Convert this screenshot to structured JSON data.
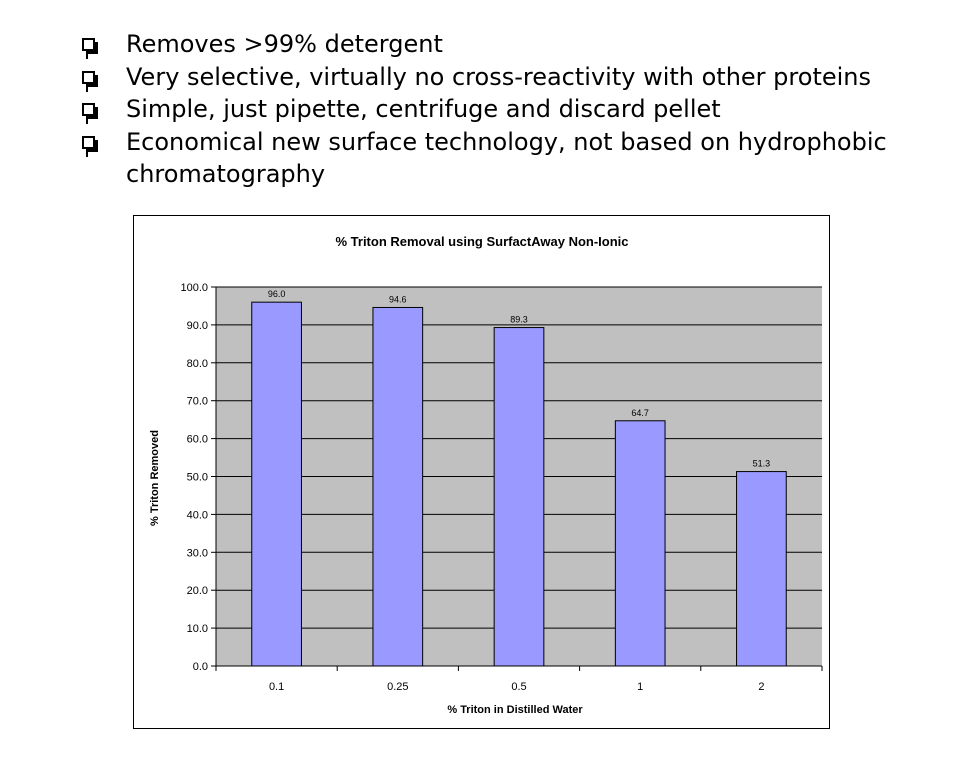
{
  "bullets": [
    "Removes >99% detergent",
    "Very selective, virtually no cross-reactivity with other proteins",
    "Simple, just pipette, centrifuge and discard pellet",
    "Economical new surface technology, not based on hydrophobic chromatography"
  ],
  "colors": {
    "bar_fill": "#9999ff",
    "plot_background": "#c0c0c0",
    "gridline": "#000000"
  },
  "chart_data": {
    "type": "bar",
    "title": "% Triton Removal using SurfactAway Non-Ionic",
    "xlabel": "% Triton in Distilled Water",
    "ylabel": "% Triton Removed",
    "categories": [
      "0.1",
      "0.25",
      "0.5",
      "1",
      "2"
    ],
    "values": [
      96.0,
      94.6,
      89.3,
      64.7,
      51.3
    ],
    "value_labels": [
      "96.0",
      "94.6",
      "89.3",
      "64.7",
      "51.3"
    ],
    "ylim": [
      0,
      100
    ],
    "ytick_labels": [
      "0.0",
      "10.0",
      "20.0",
      "30.0",
      "40.0",
      "50.0",
      "60.0",
      "70.0",
      "80.0",
      "90.0",
      "100.0"
    ],
    "grid": true,
    "legend": "none"
  }
}
